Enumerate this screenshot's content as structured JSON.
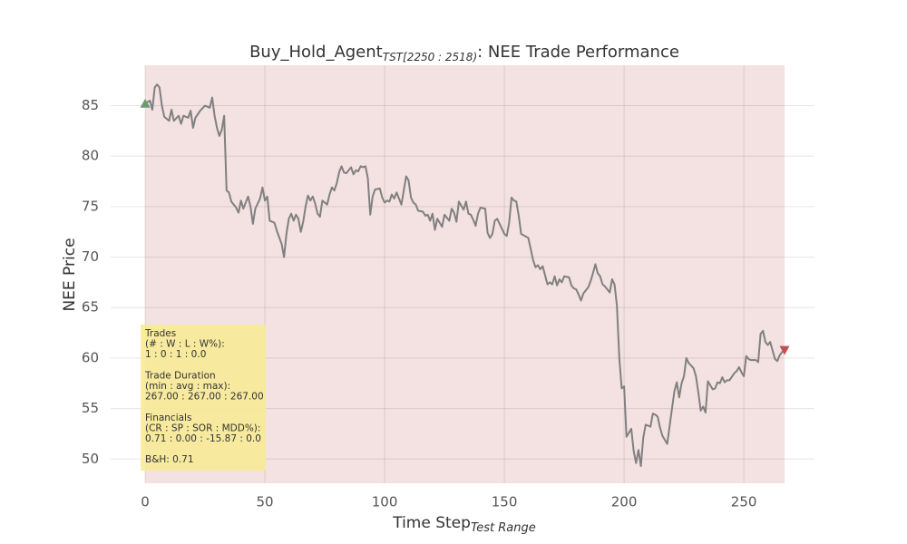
{
  "chart_data": {
    "type": "line",
    "title": {
      "main": "Buy_Hold_Agent",
      "subscript": "TST[2250 : 2518)",
      "rest": ": NEE Trade Performance"
    },
    "xlabel": {
      "main": "Time Step",
      "subscript": "Test Range"
    },
    "ylabel": "NEE Price",
    "xlim": [
      -14.4,
      279.5
    ],
    "ylim": [
      47.6,
      89.0
    ],
    "xticks": [
      0,
      50,
      100,
      150,
      200,
      250
    ],
    "yticks": [
      50,
      55,
      60,
      65,
      70,
      75,
      80,
      85
    ],
    "grid": true,
    "shade": {
      "x": [
        0,
        267
      ],
      "color": "#f4e1e2"
    },
    "x": [
      0,
      2,
      3,
      4,
      5,
      6,
      7,
      8,
      10,
      11,
      12,
      14,
      15,
      16,
      18,
      19,
      20,
      21,
      23,
      25,
      27,
      28,
      29,
      30,
      31,
      32,
      33,
      34,
      35,
      36,
      38,
      39,
      40,
      41,
      42,
      43,
      44,
      45,
      46,
      48,
      49,
      50,
      51,
      52,
      54,
      55,
      57,
      58,
      59,
      60,
      61,
      62,
      63,
      64,
      65,
      66,
      67,
      68,
      69,
      70,
      71,
      72,
      73,
      74,
      75,
      76,
      77,
      78,
      79,
      80,
      81,
      82,
      83,
      84,
      85,
      86,
      87,
      88,
      89,
      90,
      91,
      92,
      93,
      94,
      95,
      96,
      98,
      99,
      100,
      101,
      102,
      103,
      104,
      105,
      107,
      108,
      109,
      110,
      111,
      112,
      113,
      114,
      116,
      117,
      118,
      119,
      120,
      121,
      122,
      124,
      125,
      126,
      127,
      128,
      129,
      130,
      131,
      133,
      134,
      135,
      136,
      137,
      138,
      139,
      140,
      142,
      143,
      144,
      145,
      146,
      147,
      148,
      150,
      151,
      152,
      153,
      154,
      155,
      156,
      157,
      160,
      161,
      162,
      163,
      164,
      165,
      166,
      168,
      169,
      170,
      171,
      172,
      173,
      174,
      175,
      177,
      178,
      179,
      180,
      181,
      182,
      183,
      185,
      186,
      187,
      188,
      189,
      190,
      191,
      192,
      194,
      195,
      196,
      197,
      198,
      199,
      200,
      201,
      203,
      204,
      205,
      206,
      207,
      208,
      209,
      211,
      212,
      213,
      214,
      215,
      216,
      217,
      218,
      220,
      221,
      222,
      223,
      224,
      225,
      226,
      227,
      229,
      230,
      231,
      232,
      233,
      234,
      235,
      237,
      238,
      239,
      240,
      241,
      242,
      243,
      244,
      246,
      247,
      248,
      249,
      250,
      251,
      252,
      253,
      255,
      256,
      257,
      258,
      259,
      260,
      261,
      263,
      264,
      265,
      266,
      267
    ],
    "series": [
      {
        "name": "NEE",
        "color": "#808080",
        "values": [
          85.2,
          85.5,
          84.6,
          86.8,
          87.1,
          86.8,
          85,
          83.9,
          83.5,
          84.6,
          83.5,
          84,
          83.2,
          84,
          83.8,
          84.5,
          82.8,
          83.8,
          84.5,
          85,
          84.8,
          85.8,
          84,
          82.8,
          82,
          82.6,
          84,
          76.6,
          76.4,
          75.5,
          74.9,
          74.4,
          75.6,
          74.8,
          75.4,
          76,
          75,
          73.3,
          74.8,
          75.8,
          76.9,
          75.6,
          76,
          73.6,
          73.4,
          72.6,
          71.3,
          70,
          72.3,
          73.8,
          74.3,
          73.6,
          74.2,
          73.8,
          72.5,
          73.5,
          75,
          76.1,
          75.6,
          76,
          75.3,
          74.3,
          74,
          75.6,
          75.4,
          75.2,
          76.2,
          76.9,
          76.6,
          77.3,
          78.4,
          79,
          78.4,
          78.3,
          78.6,
          78.9,
          78.2,
          78.6,
          78.5,
          79,
          78.9,
          79,
          77.8,
          74.2,
          76,
          76.7,
          76.8,
          75.9,
          75.4,
          75.6,
          75.5,
          76.2,
          75.8,
          76.4,
          75.2,
          76.6,
          78,
          77.6,
          75.9,
          75.4,
          75.2,
          74.6,
          74.5,
          74.1,
          74.2,
          73.6,
          74.3,
          72.7,
          73.8,
          73,
          74.2,
          73.9,
          73.6,
          74.8,
          74.4,
          73.5,
          75.5,
          74.7,
          75.5,
          74.3,
          74.2,
          73.7,
          73.1,
          74.3,
          74.9,
          74.8,
          72.4,
          71.9,
          72.3,
          73.6,
          73.8,
          73.3,
          72.3,
          72.1,
          73.4,
          75.9,
          75.6,
          75.5,
          74.1,
          72.3,
          71.9,
          70.8,
          69.7,
          69,
          69.2,
          68.8,
          69.1,
          67.3,
          67.5,
          67.3,
          68.1,
          67.2,
          67.8,
          67.5,
          68.1,
          68,
          67.2,
          66.9,
          66.8,
          66.3,
          65.7,
          66.4,
          67,
          67.6,
          68.4,
          69.3,
          68.4,
          68.1,
          67.3,
          67.1,
          66.5,
          67.8,
          67.3,
          65.2,
          60,
          57,
          57.2,
          52.2,
          53,
          50.8,
          49.6,
          50.9,
          49.3,
          52.1,
          53.4,
          53.2,
          54.5,
          54.4,
          54.2,
          53.1,
          52.3,
          51.9,
          51.5,
          55,
          56.7,
          57.6,
          56.1,
          57.5,
          58.2,
          60,
          59.5,
          59,
          58.2,
          56.6,
          54.8,
          55.2,
          54.6,
          57.7,
          56.9,
          57,
          57.6,
          57.5,
          58.1,
          57.6,
          57.8,
          57.8,
          58.5,
          58.7,
          59.1,
          58.6,
          58.2,
          60.2,
          59.9,
          59.8,
          59.8,
          59.6,
          62.4,
          62.7,
          61.6,
          61.3,
          61.6,
          59.9,
          59.7,
          60.3,
          60.6,
          60.8
        ]
      }
    ],
    "markers": [
      {
        "x": 0,
        "y": 85.2,
        "shape": "up",
        "color": "#6a9a6e"
      },
      {
        "x": 267,
        "y": 60.8,
        "shape": "down",
        "color": "#c44e52"
      }
    ],
    "annotation": {
      "color": "#f7eb98",
      "groups": [
        [
          "Trades",
          "(# : W : L : W%):",
          "1 : 0 : 1 : 0.0"
        ],
        [
          "Trade Duration",
          "(min : avg : max):",
          "267.00 : 267.00 : 267.00"
        ],
        [
          "Financials",
          "(CR : SP : SOR : MDD%):",
          "0.71 : 0.00 : -15.87 : 0.0"
        ],
        [
          "B&H: 0.71"
        ]
      ]
    }
  }
}
